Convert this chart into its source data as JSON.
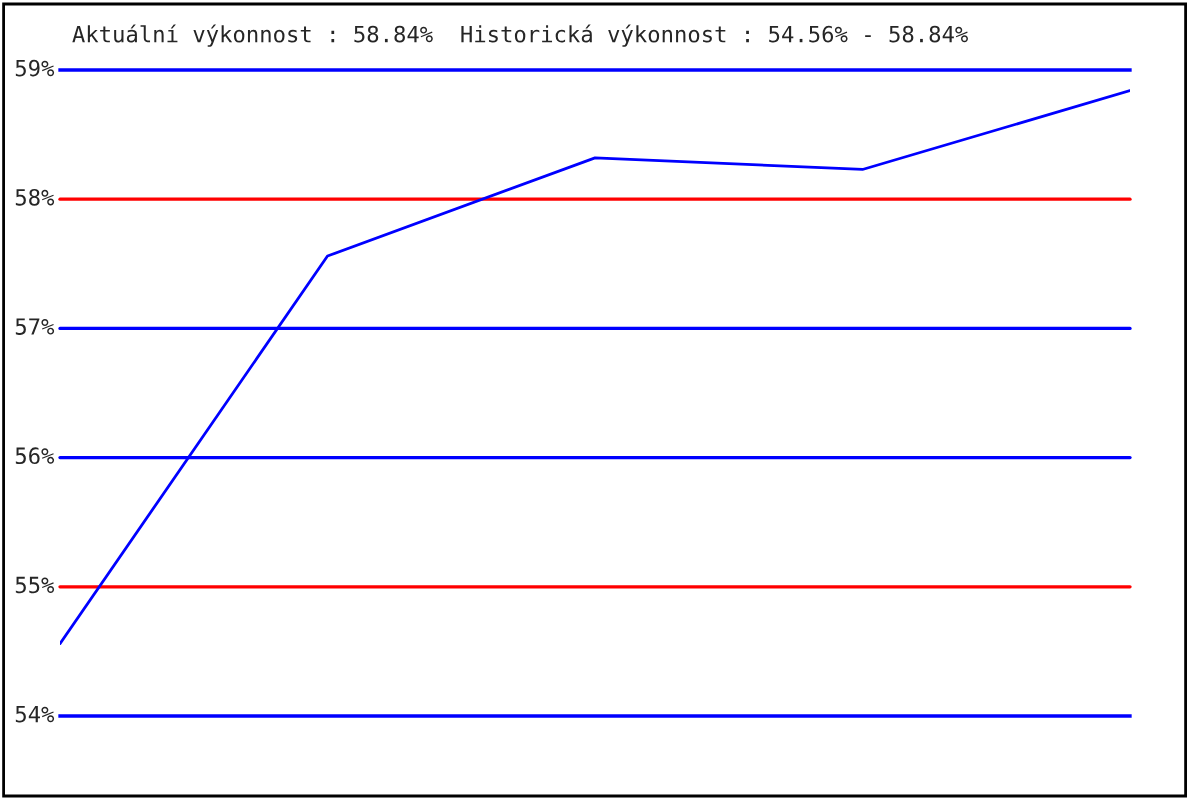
{
  "chart_data": {
    "type": "line",
    "title": "Aktuální výkonnost : 58.84%  Historická výkonnost : 54.56% - 58.84%",
    "categories": [
      null,
      null,
      null,
      null,
      null
    ],
    "series": [
      {
        "color": "#0000ff",
        "values": [
          54.56,
          57.56,
          58.32,
          58.23,
          58.84
        ]
      }
    ],
    "ylim": [
      54,
      59
    ],
    "yticks": [
      {
        "value": 54,
        "label": "54%"
      },
      {
        "value": 55,
        "label": "55%"
      },
      {
        "value": 56,
        "label": "56%"
      },
      {
        "value": 57,
        "label": "57%"
      },
      {
        "value": 58,
        "label": "58%"
      },
      {
        "value": 59,
        "label": "59%"
      }
    ],
    "ref_lines": [
      {
        "axis": "y",
        "value": 55,
        "color": "#ff0000"
      },
      {
        "axis": "y",
        "value": 56,
        "color": "#0000ff"
      },
      {
        "axis": "y",
        "value": 57,
        "color": "#0000ff"
      },
      {
        "axis": "y",
        "value": 58,
        "color": "#ff0000"
      }
    ],
    "grid": false,
    "legend": false,
    "marker": "none",
    "line_style": "solid"
  }
}
